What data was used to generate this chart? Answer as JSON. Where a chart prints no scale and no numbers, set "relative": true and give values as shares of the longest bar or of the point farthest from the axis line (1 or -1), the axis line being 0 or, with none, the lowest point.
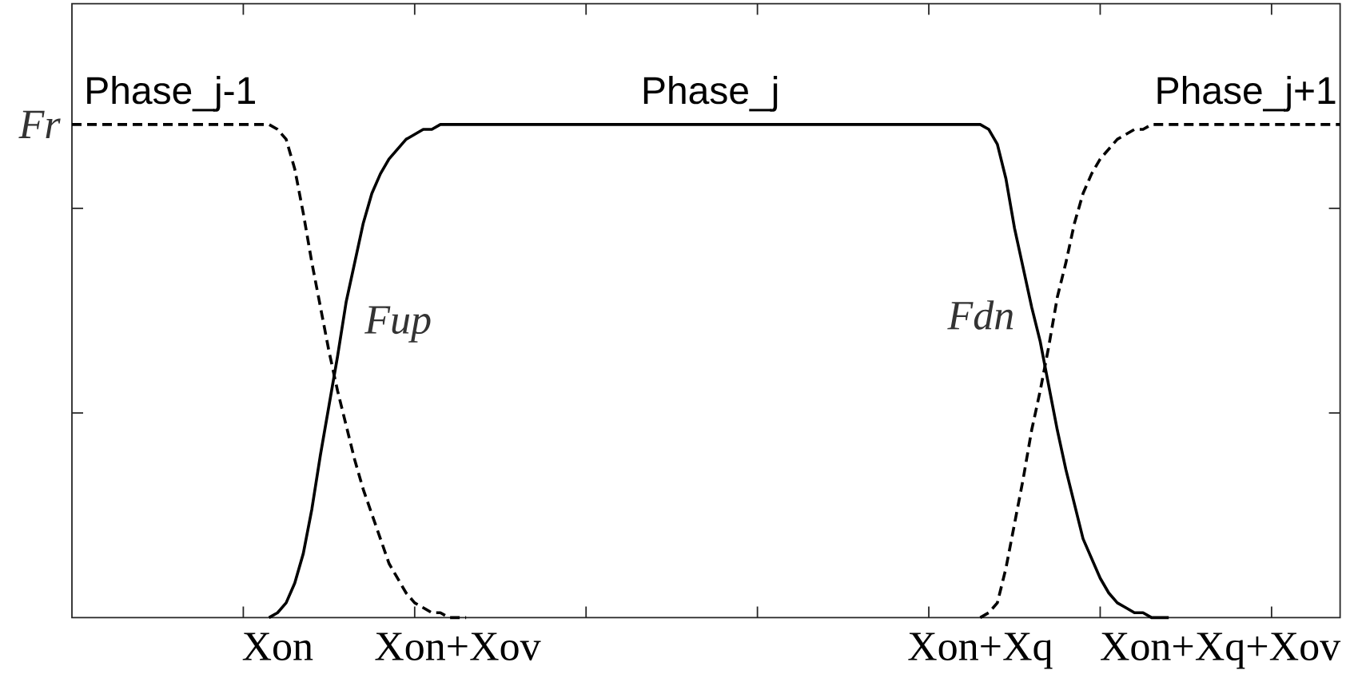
{
  "chart_data": {
    "type": "line",
    "relative": true,
    "tick_labels": "x",
    "ylabel": "Fr",
    "categories": [
      null,
      null,
      null,
      null,
      null,
      null,
      null,
      null,
      null,
      null,
      null,
      null,
      null,
      null,
      null,
      null,
      null,
      null,
      null,
      null,
      null,
      null,
      null,
      null,
      "Xon",
      null,
      null,
      null,
      null,
      null,
      null,
      null,
      null,
      null,
      null,
      null,
      null,
      null,
      null,
      null,
      null,
      null,
      null,
      null,
      null,
      "Xon+Xov",
      null,
      null,
      null,
      null,
      null,
      null,
      null,
      null,
      null,
      null,
      null,
      null,
      null,
      null,
      null,
      null,
      null,
      null,
      null,
      null,
      null,
      null,
      null,
      null,
      null,
      null,
      null,
      null,
      null,
      null,
      null,
      null,
      null,
      null,
      null,
      null,
      null,
      null,
      null,
      null,
      null,
      null,
      null,
      null,
      null,
      null,
      null,
      null,
      null,
      null,
      null,
      null,
      null,
      null,
      null,
      null,
      null,
      null,
      null,
      null,
      "Xon+Xq",
      null,
      null,
      null,
      null,
      null,
      null,
      null,
      null,
      null,
      null,
      null,
      null,
      null,
      null,
      null,
      null,
      null,
      null,
      null,
      null,
      null,
      null,
      null,
      null,
      null,
      null,
      null,
      "Xon+Xq+Xov",
      null,
      null,
      null,
      null,
      null,
      null,
      null,
      null,
      null,
      null,
      null,
      null,
      null,
      null
    ],
    "series": [
      {
        "name": "Phase_j-1",
        "color": "#000000",
        "line_style": "dashed",
        "values": [
          1,
          1,
          1,
          1,
          1,
          1,
          1,
          1,
          1,
          1,
          1,
          1,
          1,
          1,
          1,
          1,
          1,
          1,
          1,
          1,
          1,
          1,
          1,
          1,
          0.99,
          0.97,
          0.91,
          0.82,
          0.72,
          0.63,
          0.54,
          0.46,
          0.39,
          0.32,
          0.26,
          0.21,
          0.16,
          0.11,
          0.08,
          0.05,
          0.03,
          0.02,
          0.01,
          0.01,
          0,
          0,
          0,
          null,
          null,
          null,
          null,
          null,
          null,
          null,
          null,
          null,
          null,
          null,
          null,
          null,
          null,
          null,
          null,
          null,
          null,
          null,
          null,
          null,
          null,
          null,
          null,
          null,
          null,
          null,
          null,
          null,
          null,
          null,
          null,
          null,
          null,
          null,
          null,
          null,
          null,
          null,
          null,
          null,
          null,
          null,
          null,
          null,
          null,
          null,
          null,
          null,
          null,
          null,
          null,
          null,
          null,
          null,
          null,
          null,
          null,
          null,
          null,
          null,
          null,
          null,
          null,
          null,
          null,
          null,
          null,
          null,
          null,
          null,
          null,
          null,
          null,
          null,
          null,
          null,
          null,
          null,
          null,
          null,
          null,
          null,
          null,
          null,
          null,
          null,
          null,
          null,
          null,
          null,
          null,
          null,
          null,
          null,
          null,
          null,
          null,
          null,
          null,
          null,
          null
        ]
      },
      {
        "name": "Phase_j",
        "color": "#000000",
        "line_style": "solid",
        "values": [
          null,
          null,
          null,
          null,
          null,
          null,
          null,
          null,
          null,
          null,
          null,
          null,
          null,
          null,
          null,
          null,
          null,
          null,
          null,
          null,
          null,
          null,
          null,
          0,
          0.01,
          0.03,
          0.07,
          0.13,
          0.22,
          0.33,
          0.43,
          0.53,
          0.64,
          0.72,
          0.8,
          0.86,
          0.9,
          0.93,
          0.95,
          0.97,
          0.98,
          0.99,
          0.99,
          1,
          1,
          1,
          1,
          1,
          1,
          1,
          1,
          1,
          1,
          1,
          1,
          1,
          1,
          1,
          1,
          1,
          1,
          1,
          1,
          1,
          1,
          1,
          1,
          1,
          1,
          1,
          1,
          1,
          1,
          1,
          1,
          1,
          1,
          1,
          1,
          1,
          1,
          1,
          1,
          1,
          1,
          1,
          1,
          1,
          1,
          1,
          1,
          1,
          1,
          1,
          1,
          1,
          1,
          1,
          1,
          1,
          1,
          1,
          1,
          1,
          1,
          1,
          1,
          0.99,
          0.96,
          0.89,
          0.79,
          0.71,
          0.63,
          0.56,
          0.47,
          0.38,
          0.3,
          0.23,
          0.16,
          0.12,
          0.08,
          0.05,
          0.03,
          0.02,
          0.01,
          0.01,
          0,
          0,
          0,
          null,
          null,
          null,
          null,
          null,
          null,
          null,
          null,
          null,
          null,
          null,
          null,
          null,
          null,
          null,
          null,
          null,
          null,
          null,
          null
        ]
      },
      {
        "name": "Phase_j+1",
        "color": "#000000",
        "line_style": "dashed",
        "values": [
          null,
          null,
          null,
          null,
          null,
          null,
          null,
          null,
          null,
          null,
          null,
          null,
          null,
          null,
          null,
          null,
          null,
          null,
          null,
          null,
          null,
          null,
          null,
          null,
          null,
          null,
          null,
          null,
          null,
          null,
          null,
          null,
          null,
          null,
          null,
          null,
          null,
          null,
          null,
          null,
          null,
          null,
          null,
          null,
          null,
          null,
          null,
          null,
          null,
          null,
          null,
          null,
          null,
          null,
          null,
          null,
          null,
          null,
          null,
          null,
          null,
          null,
          null,
          null,
          null,
          null,
          null,
          null,
          null,
          null,
          null,
          null,
          null,
          null,
          null,
          null,
          null,
          null,
          null,
          null,
          null,
          null,
          null,
          null,
          null,
          null,
          null,
          null,
          null,
          null,
          null,
          null,
          null,
          null,
          null,
          null,
          null,
          null,
          null,
          null,
          null,
          null,
          null,
          null,
          null,
          null,
          0,
          0.01,
          0.03,
          0.1,
          0.19,
          0.28,
          0.38,
          0.46,
          0.55,
          0.65,
          0.72,
          0.8,
          0.86,
          0.9,
          0.93,
          0.95,
          0.97,
          0.98,
          0.99,
          0.99,
          1,
          1,
          1,
          1,
          1,
          1,
          1,
          1,
          1,
          1,
          1,
          1,
          1,
          1,
          1,
          1,
          1,
          1,
          1,
          1,
          1,
          1,
          1
        ]
      }
    ],
    "annotations": [
      "Fup",
      "Fdn"
    ]
  }
}
